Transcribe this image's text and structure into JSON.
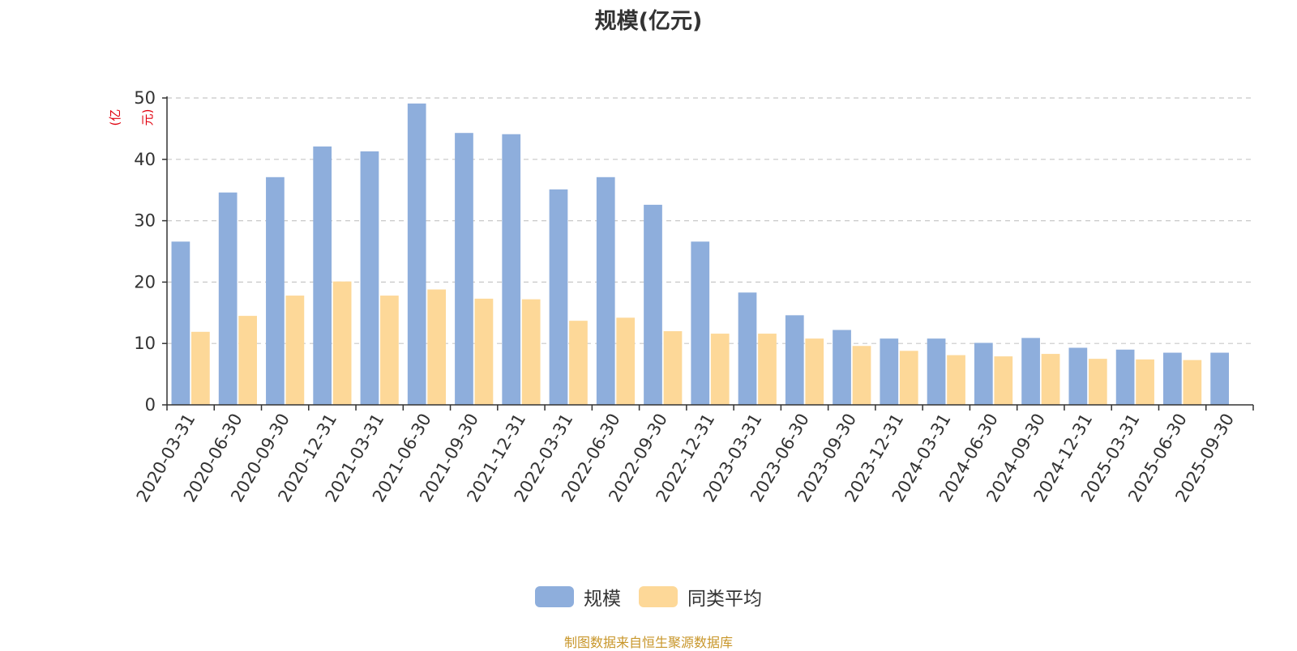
{
  "chart_data": {
    "type": "bar",
    "title": "规模(亿元)",
    "unit_label": "(亿元)",
    "ylim": [
      0,
      50
    ],
    "yticks": [
      0,
      10,
      20,
      30,
      40,
      50
    ],
    "grid": "horizontal-dashed",
    "legend_position": "bottom-center",
    "categories": [
      "2020-03-31",
      "2020-06-30",
      "2020-09-30",
      "2020-12-31",
      "2021-03-31",
      "2021-06-30",
      "2021-09-30",
      "2021-12-31",
      "2022-03-31",
      "2022-06-30",
      "2022-09-30",
      "2022-12-31",
      "2023-03-31",
      "2023-06-30",
      "2023-09-30",
      "2023-12-31",
      "2024-03-31",
      "2024-06-30",
      "2024-09-30",
      "2024-12-31",
      "2025-03-31",
      "2025-06-30",
      "2025-09-30"
    ],
    "series": [
      {
        "name": "规模",
        "color": "#8eaedc",
        "values": [
          26.6,
          34.6,
          37.1,
          42.1,
          41.3,
          49.1,
          44.3,
          44.1,
          35.1,
          37.1,
          32.6,
          26.6,
          18.3,
          14.6,
          12.2,
          10.8,
          10.8,
          10.1,
          10.9,
          9.3,
          9.0,
          8.5,
          8.5
        ]
      },
      {
        "name": "同类平均",
        "color": "#fdd898",
        "values": [
          11.9,
          14.5,
          17.8,
          20.1,
          17.8,
          18.8,
          17.3,
          17.2,
          13.7,
          14.2,
          12.0,
          11.6,
          11.6,
          10.8,
          9.6,
          8.8,
          8.1,
          7.9,
          8.3,
          7.5,
          7.4,
          7.3,
          null
        ]
      }
    ]
  },
  "source_note": "制图数据来自恒生聚源数据库"
}
